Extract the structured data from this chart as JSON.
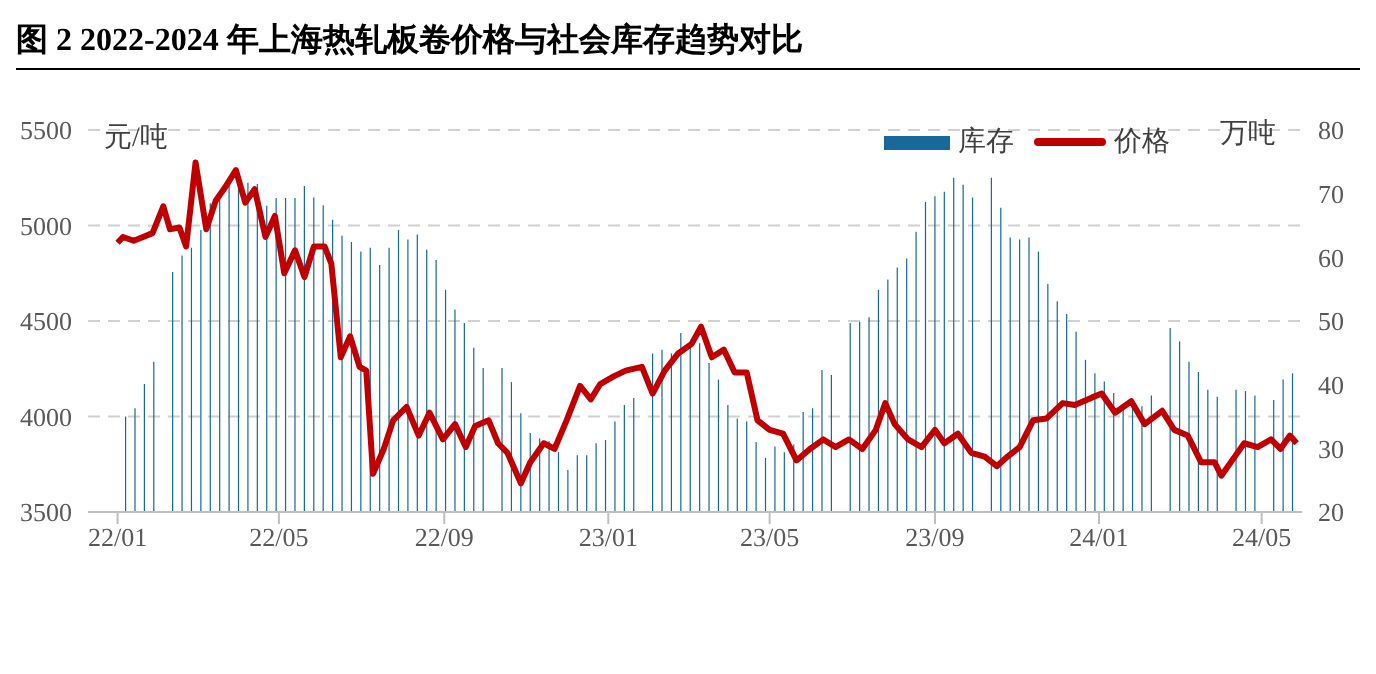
{
  "chart_data": {
    "type": "line",
    "title": "图 2 2022-2024 年上海热轧板卷价格与社会库存趋势对比",
    "ylabel": "元/吨",
    "y2label": "万吨",
    "series": [
      {
        "name": "库存",
        "type": "bar",
        "axis": "y2",
        "color": "#17699b",
        "x": [
          "2022-01-07",
          "2022-01-14",
          "2022-01-21",
          "2022-01-28",
          "2022-02-04",
          "2022-02-11",
          "2022-02-18",
          "2022-02-25",
          "2022-03-04",
          "2022-03-11",
          "2022-03-18",
          "2022-03-25",
          "2022-04-01",
          "2022-04-08",
          "2022-04-15",
          "2022-04-22",
          "2022-04-29",
          "2022-05-06",
          "2022-05-13",
          "2022-05-20",
          "2022-05-27",
          "2022-06-03",
          "2022-06-10",
          "2022-06-17",
          "2022-06-24",
          "2022-07-01",
          "2022-07-08",
          "2022-07-15",
          "2022-07-22",
          "2022-07-29",
          "2022-08-05",
          "2022-08-12",
          "2022-08-19",
          "2022-08-26",
          "2022-09-02",
          "2022-09-09",
          "2022-09-16",
          "2022-09-23",
          "2022-09-30",
          "2022-10-07",
          "2022-10-14",
          "2022-10-21",
          "2022-10-28",
          "2022-11-04",
          "2022-11-11",
          "2022-11-18",
          "2022-11-25",
          "2022-12-02",
          "2022-12-09",
          "2022-12-16",
          "2022-12-23",
          "2022-12-30",
          "2023-01-06",
          "2023-01-13",
          "2023-01-20",
          "2023-01-27",
          "2023-02-03",
          "2023-02-10",
          "2023-02-17",
          "2023-02-24",
          "2023-03-03",
          "2023-03-10",
          "2023-03-17",
          "2023-03-24",
          "2023-03-31",
          "2023-04-07",
          "2023-04-14",
          "2023-04-21",
          "2023-04-28",
          "2023-05-05",
          "2023-05-12",
          "2023-05-19",
          "2023-05-26",
          "2023-06-02",
          "2023-06-09",
          "2023-06-16",
          "2023-06-23",
          "2023-06-30",
          "2023-07-07",
          "2023-07-14",
          "2023-07-21",
          "2023-07-28",
          "2023-08-04",
          "2023-08-11",
          "2023-08-18",
          "2023-08-25",
          "2023-09-01",
          "2023-09-08",
          "2023-09-15",
          "2023-09-22",
          "2023-09-29",
          "2023-10-06",
          "2023-10-13",
          "2023-10-20",
          "2023-10-27",
          "2023-11-03",
          "2023-11-10",
          "2023-11-17",
          "2023-11-24",
          "2023-12-01",
          "2023-12-08",
          "2023-12-15",
          "2023-12-22",
          "2023-12-29",
          "2024-01-05",
          "2024-01-12",
          "2024-01-19",
          "2024-01-26",
          "2024-02-02",
          "2024-02-09",
          "2024-02-16",
          "2024-02-23",
          "2024-03-01",
          "2024-03-08",
          "2024-03-15",
          "2024-03-22",
          "2024-03-29",
          "2024-04-05",
          "2024-04-12",
          "2024-04-19",
          "2024-04-26",
          "2024-05-03",
          "2024-05-10",
          "2024-05-17",
          "2024-05-24"
        ],
        "values": [
          35.0,
          36.3,
          40.1,
          43.6,
          null,
          57.7,
          60.3,
          61.5,
          64.3,
          68.5,
          69.9,
          71.2,
          71.2,
          71.7,
          71.5,
          68.1,
          69.3,
          69.3,
          69.3,
          71.2,
          69.4,
          68.2,
          65.9,
          63.4,
          62.4,
          60.9,
          61.5,
          58.8,
          61.5,
          64.3,
          62.8,
          63.6,
          61.2,
          59.6,
          54.9,
          51.8,
          49.7,
          45.8,
          42.6,
          null,
          42.6,
          40.4,
          35.5,
          32.4,
          31.6,
          31.1,
          29.4,
          26.6,
          28.9,
          28.9,
          30.8,
          31.3,
          34.2,
          36.8,
          37.9,
          null,
          44.9,
          45.5,
          44.9,
          48.1,
          46.0,
          46.5,
          43.4,
          40.8,
          36.8,
          34.7,
          34.2,
          31.0,
          28.5,
          30.3,
          29.4,
          30.6,
          35.7,
          36.3,
          42.3,
          41.5,
          null,
          49.7,
          49.9,
          50.6,
          54.9,
          56.5,
          58.4,
          59.8,
          64.0,
          68.7,
          69.6,
          70.3,
          72.5,
          71.4,
          69.4,
          null,
          72.5,
          67.8,
          63.1,
          62.8,
          63.1,
          60.9,
          55.8,
          53.1,
          51.1,
          48.3,
          43.9,
          41.8,
          40.5,
          38.7,
          36.6,
          36.6,
          36.6,
          38.3,
          null,
          48.9,
          46.8,
          43.6,
          42.0,
          39.2,
          38.1,
          null,
          39.2,
          39.0,
          38.3,
          null,
          37.6,
          40.8,
          41.8
        ]
      },
      {
        "name": "价格",
        "axis": "y",
        "color": "#c00000",
        "x": [
          "2022-01-01",
          "2022-01-05",
          "2022-01-13",
          "2022-01-20",
          "2022-01-27",
          "2022-02-04",
          "2022-02-09",
          "2022-02-16",
          "2022-02-21",
          "2022-02-28",
          "2022-03-08",
          "2022-03-15",
          "2022-03-22",
          "2022-03-30",
          "2022-04-06",
          "2022-04-13",
          "2022-04-21",
          "2022-04-28",
          "2022-05-05",
          "2022-05-13",
          "2022-05-20",
          "2022-05-27",
          "2022-06-04",
          "2022-06-09",
          "2022-06-16",
          "2022-06-23",
          "2022-06-30",
          "2022-07-05",
          "2022-07-10",
          "2022-07-18",
          "2022-07-25",
          "2022-08-04",
          "2022-08-13",
          "2022-08-21",
          "2022-08-31",
          "2022-09-09",
          "2022-09-17",
          "2022-09-24",
          "2022-10-04",
          "2022-10-11",
          "2022-10-18",
          "2022-10-28",
          "2022-11-04",
          "2022-11-14",
          "2022-11-22",
          "2022-12-01",
          "2022-12-11",
          "2022-12-19",
          "2022-12-26",
          "2023-01-05",
          "2023-01-14",
          "2023-01-26",
          "2023-02-03",
          "2023-02-12",
          "2023-02-22",
          "2023-03-04",
          "2023-03-11",
          "2023-03-19",
          "2023-03-28",
          "2023-04-05",
          "2023-04-14",
          "2023-04-22",
          "2023-05-01",
          "2023-05-11",
          "2023-05-21",
          "2023-05-31",
          "2023-06-10",
          "2023-06-19",
          "2023-06-29",
          "2023-07-09",
          "2023-07-19",
          "2023-07-26",
          "2023-08-02",
          "2023-08-12",
          "2023-08-22",
          "2023-09-01",
          "2023-09-08",
          "2023-09-18",
          "2023-09-28",
          "2023-10-08",
          "2023-10-17",
          "2023-10-25",
          "2023-11-03",
          "2023-11-13",
          "2023-11-23",
          "2023-12-05",
          "2023-12-14",
          "2023-12-27",
          "2024-01-03",
          "2024-01-13",
          "2024-01-25",
          "2024-02-04",
          "2024-02-17",
          "2024-02-26",
          "2024-03-07",
          "2024-03-17",
          "2024-03-27",
          "2024-04-01",
          "2024-04-11",
          "2024-04-18",
          "2024-04-28",
          "2024-05-08",
          "2024-05-15",
          "2024-05-22",
          "2024-05-27"
        ],
        "values": [
          4910,
          4940,
          4920,
          4940,
          4960,
          5100,
          4980,
          4990,
          4890,
          5330,
          4980,
          5130,
          5200,
          5290,
          5120,
          5190,
          4940,
          5050,
          4750,
          4870,
          4730,
          4890,
          4890,
          4800,
          4310,
          4420,
          4260,
          4240,
          3700,
          3830,
          3980,
          4050,
          3900,
          4020,
          3880,
          3960,
          3840,
          3950,
          3980,
          3860,
          3810,
          3650,
          3760,
          3860,
          3830,
          3980,
          4160,
          4090,
          4170,
          4210,
          4240,
          4260,
          4120,
          4240,
          4330,
          4380,
          4470,
          4310,
          4350,
          4230,
          4230,
          3980,
          3930,
          3910,
          3770,
          3830,
          3880,
          3840,
          3880,
          3830,
          3930,
          4070,
          3960,
          3880,
          3840,
          3930,
          3860,
          3910,
          3810,
          3790,
          3740,
          3790,
          3840,
          3980,
          3990,
          4070,
          4060,
          4100,
          4120,
          4020,
          4080,
          3960,
          4030,
          3930,
          3900,
          3760,
          3760,
          3690,
          3790,
          3860,
          3840,
          3880,
          3830,
          3900,
          3860
        ]
      }
    ],
    "xlim": [
      "2021-12-10",
      "2024-05-31"
    ],
    "xticks": [
      {
        "value": "2022-01-01",
        "label": "22/01"
      },
      {
        "value": "2022-05-01",
        "label": "22/05"
      },
      {
        "value": "2022-09-01",
        "label": "22/09"
      },
      {
        "value": "2023-01-01",
        "label": "23/01"
      },
      {
        "value": "2023-05-01",
        "label": "23/05"
      },
      {
        "value": "2023-09-01",
        "label": "23/09"
      },
      {
        "value": "2024-01-01",
        "label": "24/01"
      },
      {
        "value": "2024-05-01",
        "label": "24/05"
      }
    ],
    "ylim": [
      3500,
      5500
    ],
    "yticks": [
      3500,
      4000,
      4500,
      5000,
      5500
    ],
    "y2lim": [
      20,
      80
    ],
    "y2ticks": [
      20,
      30,
      40,
      50,
      60,
      70,
      80
    ],
    "grid": "y",
    "legend": "top right",
    "marker": "none",
    "line_style": "solid"
  }
}
